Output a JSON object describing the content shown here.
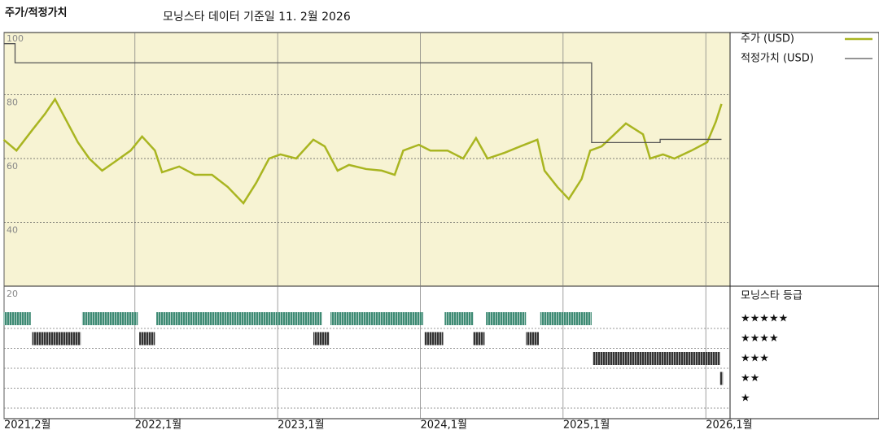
{
  "chart_data": {
    "type": "line",
    "title": "주가/적정가치",
    "subtitle": "모닝스타 데이터 기준일 11. 2월 2026",
    "xlim": [
      2021.083,
      2026.17
    ],
    "xticks": [
      {
        "value": 2021.083,
        "label": "2021,2월"
      },
      {
        "value": 2022,
        "label": "2022,1월"
      },
      {
        "value": 2023,
        "label": "2023,1월"
      },
      {
        "value": 2024,
        "label": "2024,1월"
      },
      {
        "value": 2025,
        "label": "2025,1월"
      },
      {
        "value": 2026,
        "label": "2026,1월"
      }
    ],
    "ylim": [
      20,
      100
    ],
    "yticks": [
      20,
      40,
      60,
      80,
      100
    ],
    "grid": true,
    "series": [
      {
        "name": "주가 (USD)",
        "color": "#a9b521",
        "x": [
          2021.08,
          2021.17,
          2021.28,
          2021.37,
          2021.44,
          2021.51,
          2021.6,
          2021.68,
          2021.77,
          2021.85,
          2021.97,
          2022.05,
          2022.14,
          2022.19,
          2022.31,
          2022.42,
          2022.54,
          2022.65,
          2022.76,
          2022.85,
          2022.94,
          2023.02,
          2023.13,
          2023.25,
          2023.33,
          2023.42,
          2023.5,
          2023.62,
          2023.73,
          2023.82,
          2023.88,
          2023.99,
          2024.07,
          2024.19,
          2024.3,
          2024.39,
          2024.47,
          2024.59,
          2024.7,
          2024.82,
          2024.87,
          2024.96,
          2025.04,
          2025.13,
          2025.19,
          2025.27,
          2025.36,
          2025.44,
          2025.56,
          2025.61,
          2025.7,
          2025.78,
          2025.9,
          2026.01,
          2026.07,
          2026.11
        ],
        "values": [
          65.9,
          62.5,
          68.9,
          74,
          78.6,
          72.7,
          65.1,
          60,
          56.2,
          58.7,
          62.5,
          66.9,
          62.5,
          55.7,
          57.5,
          54.9,
          54.9,
          51.1,
          46,
          52.4,
          60,
          61.3,
          60,
          65.9,
          63.8,
          56.2,
          58,
          56.7,
          56.2,
          54.9,
          62.5,
          64.3,
          62.5,
          62.5,
          60,
          66.4,
          60,
          61.8,
          63.8,
          65.9,
          56.2,
          51.1,
          47.3,
          53.6,
          62.5,
          63.8,
          67.6,
          71,
          67.6,
          60,
          61.3,
          60,
          62.5,
          65.1,
          71.5,
          77.1
        ]
      },
      {
        "name": "적정가치 (USD)",
        "color": "#555555",
        "x": [
          2021.08,
          2021.16,
          2021.16,
          2025.2,
          2025.2,
          2025.68,
          2025.68,
          2026.11
        ],
        "values": [
          96,
          96,
          90,
          90,
          65,
          65,
          66,
          66
        ]
      }
    ],
    "rating_title": "모닝스타 등급",
    "rating_rows": [
      {
        "stars": 5,
        "label": "★★★★★",
        "color": "#3d8a73"
      },
      {
        "stars": 4,
        "label": "★★★★",
        "color": "#333333"
      },
      {
        "stars": 3,
        "label": "★★★",
        "color": "#333333"
      },
      {
        "stars": 2,
        "label": "★★",
        "color": "#333333"
      },
      {
        "stars": 1,
        "label": "★",
        "color": "#333333"
      }
    ],
    "rating_periods": [
      {
        "start": 2021.08,
        "end": 2021.27,
        "stars": 5
      },
      {
        "start": 2021.28,
        "end": 2021.62,
        "stars": 4
      },
      {
        "start": 2021.63,
        "end": 2022.02,
        "stars": 5
      },
      {
        "start": 2022.03,
        "end": 2022.14,
        "stars": 4
      },
      {
        "start": 2022.15,
        "end": 2023.31,
        "stars": 5
      },
      {
        "start": 2023.25,
        "end": 2023.36,
        "stars": 4
      },
      {
        "start": 2023.37,
        "end": 2024.02,
        "stars": 5
      },
      {
        "start": 2024.03,
        "end": 2024.16,
        "stars": 4
      },
      {
        "start": 2024.17,
        "end": 2024.37,
        "stars": 5
      },
      {
        "start": 2024.37,
        "end": 2024.45,
        "stars": 4
      },
      {
        "start": 2024.46,
        "end": 2024.74,
        "stars": 5
      },
      {
        "start": 2024.74,
        "end": 2024.83,
        "stars": 4
      },
      {
        "start": 2024.84,
        "end": 2025.2,
        "stars": 5
      },
      {
        "start": 2025.21,
        "end": 2026.1,
        "stars": 3
      },
      {
        "start": 2026.1,
        "end": 2026.12,
        "stars": 2
      }
    ]
  }
}
